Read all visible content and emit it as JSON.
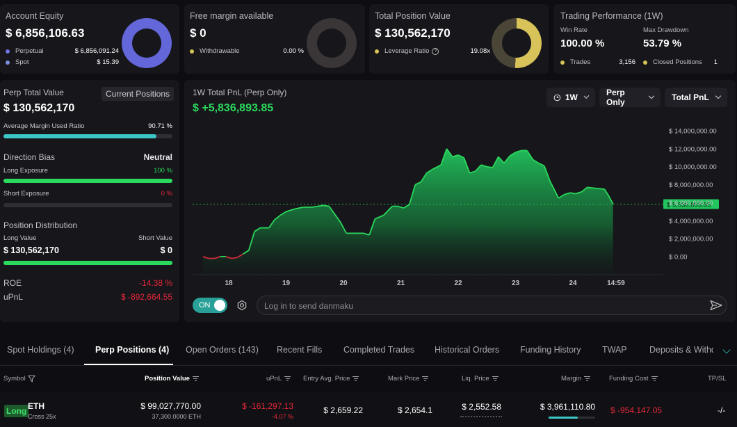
{
  "summary": {
    "account_equity": {
      "title": "Account Equity",
      "value": "$ 6,856,106.63",
      "rows": [
        {
          "label": "Perpetual",
          "value": "$ 6,856,091.24",
          "color": "#6f74e6"
        },
        {
          "label": "Spot",
          "value": "$ 15.39",
          "color": "#7a8fe0"
        }
      ]
    },
    "free_margin": {
      "title": "Free margin available",
      "value": "$ 0",
      "rows": [
        {
          "label": "Withdrawable",
          "value": "0.00 %",
          "color": "#d6c455"
        }
      ]
    },
    "total_position": {
      "title": "Total Position Value",
      "value": "$ 130,562,170",
      "rows": [
        {
          "label": "Leverage Ratio",
          "value": "19.08x",
          "color": "#d6c455"
        }
      ]
    },
    "performance": {
      "title": "Trading Performance (1W)",
      "win_rate_label": "Win Rate",
      "win_rate": "100.00 %",
      "drawdown_label": "Max Drawdown",
      "drawdown": "53.79 %",
      "trades_label": "Trades",
      "trades": "3,156",
      "closed_label": "Closed Positions",
      "closed": "1"
    }
  },
  "left_panel": {
    "perp_total_label": "Perp Total Value",
    "current_positions_btn": "Current Positions",
    "perp_total_value": "$ 130,562,170",
    "margin_ratio_label": "Average Margin Used Ratio",
    "margin_ratio_value": "90.71 %",
    "margin_ratio_pct": 90.71,
    "direction_bias_label": "Direction Bias",
    "direction_bias_value": "Neutral",
    "long_exposure_label": "Long Exposure",
    "long_exposure_value": "100 %",
    "long_exposure_pct": 100,
    "short_exposure_label": "Short Exposure",
    "short_exposure_value": "0 %",
    "short_exposure_pct": 0,
    "distribution_label": "Position Distribution",
    "long_value_label": "Long Value",
    "short_value_label": "Short Value",
    "long_value": "$ 130,562,170",
    "short_value": "$ 0",
    "roe_label": "ROE",
    "roe_value": "-14.38 %",
    "upnl_label": "uPnL",
    "upnl_value": "$ -892,664.55"
  },
  "chart_panel": {
    "title": "1W Total PnL (Perp Only)",
    "pnl_value": "$ +5,836,893.85",
    "controls": {
      "range": "1W",
      "scope": "Perp Only",
      "metric": "Total PnL"
    },
    "toggle_label": "ON",
    "danmaku_placeholder": "Log in to send danmaku"
  },
  "chart_data": {
    "type": "area",
    "title": "1W Total PnL (Perp Only)",
    "x_ticks": [
      "18",
      "19",
      "20",
      "21",
      "22",
      "23",
      "24",
      "14:59"
    ],
    "y_ticks": [
      "$ 14,000,000.00",
      "$ 12,000,000.00",
      "$ 10,000,000.00",
      "$ 8,000,000.00",
      "$ 6,000,000.00",
      "$ 4,000,000.00",
      "$ 2,000,000.00",
      "$ 0.00"
    ],
    "ylim": [
      0,
      14000000
    ],
    "current_value_label": "$ 5,836,893.85",
    "current_value": 5836893.85,
    "x_days": [
      17.55,
      17.65,
      17.75,
      17.85,
      17.95,
      18.05,
      18.15,
      18.25,
      18.35,
      18.45,
      18.55,
      18.7,
      18.8,
      18.9,
      19.0,
      19.15,
      19.3,
      19.45,
      19.55,
      19.65,
      19.75,
      19.85,
      19.95,
      20.05,
      20.2,
      20.35,
      20.45,
      20.55,
      20.7,
      20.85,
      20.95,
      21.05,
      21.15,
      21.25,
      21.35,
      21.45,
      21.55,
      21.7,
      21.8,
      21.9,
      22.0,
      22.1,
      22.2,
      22.3,
      22.4,
      22.5,
      22.6,
      22.7,
      22.8,
      22.9,
      23.0,
      23.1,
      23.2,
      23.3,
      23.4,
      23.5,
      23.6,
      23.75,
      23.85,
      23.95,
      24.05,
      24.15,
      24.25,
      24.4,
      24.55,
      24.62,
      24.7
    ],
    "values": [
      0,
      -200000,
      -200000,
      0,
      0,
      -200000,
      -100000,
      300000,
      700000,
      2800000,
      3200000,
      3200000,
      4100000,
      4600000,
      5000000,
      5300000,
      5500000,
      5500000,
      5600000,
      5700000,
      5600000,
      4700000,
      3800000,
      2600000,
      2600000,
      2600000,
      2400000,
      4200000,
      4600000,
      5600000,
      5600000,
      5400000,
      5800000,
      8000000,
      8300000,
      9300000,
      9700000,
      10200000,
      12000000,
      11100000,
      11300000,
      11000000,
      9300000,
      9500000,
      10200000,
      10000000,
      9900000,
      11100000,
      10400000,
      11200000,
      11600000,
      11800000,
      11800000,
      10800000,
      10400000,
      10100000,
      8400000,
      6500000,
      6900000,
      7100000,
      7000000,
      7200000,
      7700000,
      7600000,
      7500000,
      6800000,
      5836893.85
    ]
  },
  "tabs": [
    {
      "label": "Spot Holdings (4)",
      "active": false
    },
    {
      "label": "Perp Positions (4)",
      "active": true
    },
    {
      "label": "Open Orders (143)",
      "active": false
    },
    {
      "label": "Recent Fills",
      "active": false
    },
    {
      "label": "Completed Trades",
      "active": false
    },
    {
      "label": "Historical Orders",
      "active": false
    },
    {
      "label": "Funding History",
      "active": false
    },
    {
      "label": "TWAP",
      "active": false
    },
    {
      "label": "Deposits & Withdr",
      "active": false
    }
  ],
  "table": {
    "headers": {
      "symbol": "Symbol",
      "position_value": "Position Value",
      "upnl": "uPnL",
      "entry": "Entry Avg. Price",
      "mark": "Mark Price",
      "liq": "Liq. Price",
      "margin": "Margin",
      "funding": "Funding Cost",
      "tpsl": "TP/SL"
    },
    "rows": [
      {
        "side": "Long",
        "symbol": "ETH",
        "cross": "Cross 25x",
        "position_value": "$ 99,027,770.00",
        "position_size": "37,300.0000 ETH",
        "upnl": "$ -161,297.13",
        "upnl_pct": "-4.07 %",
        "entry": "$ 2,659.22",
        "mark": "$ 2,654.1",
        "liq": "$ 2,552.58",
        "margin": "$ 3,961,110.80",
        "funding": "$ -954,147.05",
        "tpsl": "-/-"
      }
    ]
  },
  "colors": {
    "positive": "#2bd95c",
    "negative": "#e5283a",
    "accent": "#2aa198",
    "bar_fill": "#3dc6c6"
  }
}
